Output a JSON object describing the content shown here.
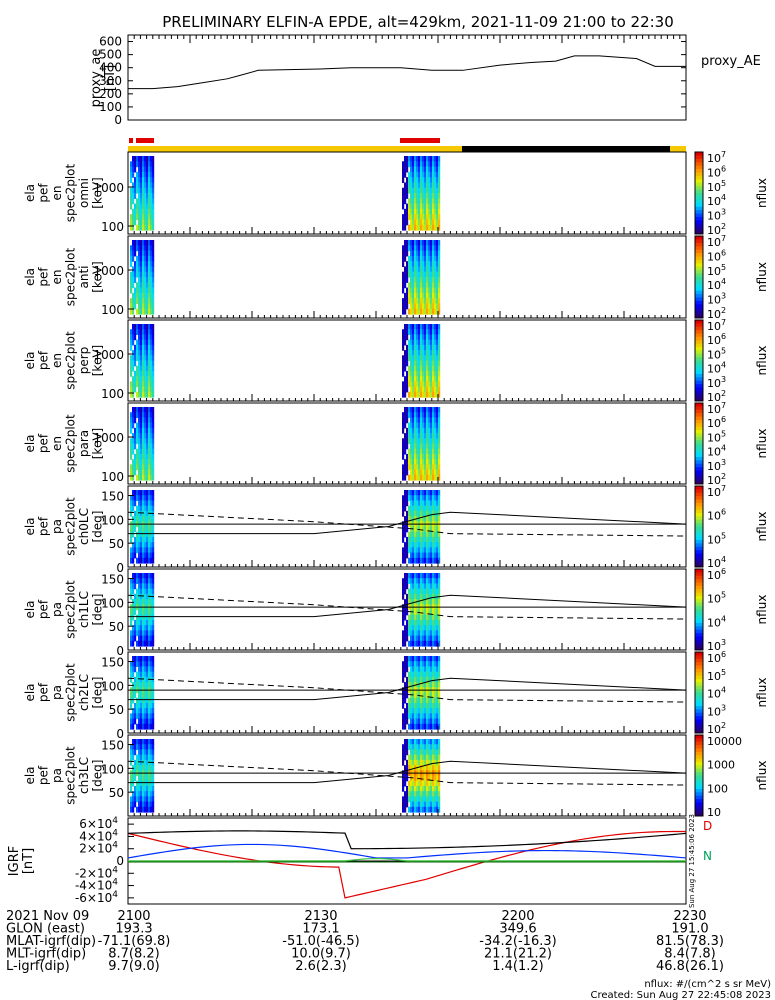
{
  "title": "PRELIMINARY ELFIN-A EPDE, alt=429km, 2021-11-09 21:00 to 22:30",
  "chart_data": [
    {
      "type": "line",
      "panel": "proxy_ae",
      "ylabel": [
        "proxy_ae",
        "[nT]"
      ],
      "legend": "proxy_AE",
      "ylim": [
        0,
        650
      ],
      "yticks": [
        "0",
        "100",
        "200",
        "300",
        "400",
        "500",
        "600"
      ],
      "series": [
        {
          "name": "proxy_AE",
          "x": [
            0,
            4,
            8,
            12,
            16,
            18,
            21,
            26,
            31,
            36,
            40,
            44,
            49,
            54,
            60,
            65,
            69,
            72,
            76,
            82,
            85,
            90
          ],
          "y": [
            240,
            240,
            255,
            285,
            315,
            340,
            380,
            385,
            390,
            400,
            400,
            400,
            380,
            380,
            420,
            440,
            450,
            490,
            490,
            470,
            410,
            410
          ]
        }
      ]
    },
    {
      "type": "heatmap",
      "panel": "omni",
      "ylabel": [
        "ela",
        "pef",
        "en",
        "spec2plot",
        "omni",
        "[keV]"
      ],
      "yticks": [
        "100",
        "1000"
      ],
      "colorbar": {
        "label": "nflux",
        "ticks": [
          "10^2",
          "10^3",
          "10^4",
          "10^5",
          "10^6",
          "10^7"
        ]
      }
    },
    {
      "type": "heatmap",
      "panel": "anti",
      "ylabel": [
        "ela",
        "pef",
        "en",
        "spec2plot",
        "anti",
        "[keV]"
      ],
      "yticks": [
        "100",
        "1000"
      ],
      "colorbar": {
        "label": "nflux",
        "ticks": [
          "10^2",
          "10^3",
          "10^4",
          "10^5",
          "10^6",
          "10^7"
        ]
      }
    },
    {
      "type": "heatmap",
      "panel": "perp",
      "ylabel": [
        "ela",
        "pef",
        "en",
        "spec2plot",
        "perp",
        "[keV]"
      ],
      "yticks": [
        "100",
        "1000"
      ],
      "colorbar": {
        "label": "nflux",
        "ticks": [
          "10^2",
          "10^3",
          "10^4",
          "10^5",
          "10^6",
          "10^7"
        ]
      }
    },
    {
      "type": "heatmap",
      "panel": "para",
      "ylabel": [
        "ela",
        "pef",
        "en",
        "spec2plot",
        "para",
        "[keV]"
      ],
      "yticks": [
        "100",
        "1000"
      ],
      "colorbar": {
        "label": "nflux",
        "ticks": [
          "10^2",
          "10^3",
          "10^4",
          "10^5",
          "10^6",
          "10^7"
        ]
      }
    },
    {
      "type": "heatmap",
      "panel": "ch0LC",
      "ylabel": [
        "ela",
        "pef",
        "pa",
        "spec2plot",
        "ch0LC",
        "[deg]"
      ],
      "ylim": [
        0,
        170
      ],
      "yticks": [
        "0",
        "50",
        "100",
        "150"
      ],
      "colorbar": {
        "label": "nflux",
        "ticks": [
          "10^4",
          "10^5",
          "10^6",
          "10^7"
        ]
      }
    },
    {
      "type": "heatmap",
      "panel": "ch1LC",
      "ylabel": [
        "ela",
        "pef",
        "pa",
        "spec2plot",
        "ch1LC",
        "[deg]"
      ],
      "ylim": [
        0,
        170
      ],
      "yticks": [
        "0",
        "50",
        "100",
        "150"
      ],
      "colorbar": {
        "label": "nflux",
        "ticks": [
          "10^3",
          "10^4",
          "10^5",
          "10^6"
        ]
      }
    },
    {
      "type": "heatmap",
      "panel": "ch2LC",
      "ylabel": [
        "ela",
        "pef",
        "pa",
        "spec2plot",
        "ch2LC",
        "[deg]"
      ],
      "ylim": [
        0,
        170
      ],
      "yticks": [
        "0",
        "50",
        "100",
        "150"
      ],
      "colorbar": {
        "label": "nflux",
        "ticks": [
          "10^2",
          "10^3",
          "10^4",
          "10^5",
          "10^6"
        ]
      }
    },
    {
      "type": "heatmap",
      "panel": "ch3LC",
      "ylabel": [
        "ela",
        "pef",
        "pa",
        "spec2plot",
        "ch3LC",
        "[deg]"
      ],
      "ylim": [
        0,
        170
      ],
      "yticks": [
        "50",
        "100",
        "150"
      ],
      "colorbar": {
        "label": "nflux",
        "ticks": [
          "10",
          "100",
          "1000",
          "10000"
        ]
      }
    },
    {
      "type": "line",
      "panel": "IGRF",
      "ylabel": [
        "IGRF",
        "[nT]"
      ],
      "ylim": [
        -70000,
        70000
      ],
      "yticks": [
        "-6×10^4",
        "-4×10^4",
        "-2×10^4",
        "0",
        "2×10^4",
        "4×10^4",
        "6×10^4"
      ],
      "legend": [
        "D",
        "N"
      ]
    }
  ],
  "footer": {
    "rows": [
      {
        "label": "2021 Nov 09",
        "values": [
          "2100",
          "2130",
          "2200",
          "2230"
        ]
      },
      {
        "label": "GLON (east)",
        "values": [
          "193.3",
          "173.1",
          "349.6",
          "191.0"
        ]
      },
      {
        "label": "MLAT-igrf(dip)",
        "values": [
          "-71.1(69.8)",
          "-51.0(-46.5)",
          "-34.2(-16.3)",
          "81.5(78.3)"
        ]
      },
      {
        "label": "MLT-igrf(dip)",
        "values": [
          "8.7(8.2)",
          "10.0(9.7)",
          "21.1(21.2)",
          "8.4(7.8)"
        ]
      },
      {
        "label": "L-igrf(dip)",
        "values": [
          "9.7(9.0)",
          "2.6(2.3)",
          "1.4(1.2)",
          "46.8(26.1)"
        ]
      }
    ],
    "units_note": "nflux: #/(cm^2 s sr MeV)",
    "created": "Created: Sun Aug 27 22:45:08 2023",
    "vertical_stamp": "Sun Aug 27 15:45:06 2023"
  }
}
